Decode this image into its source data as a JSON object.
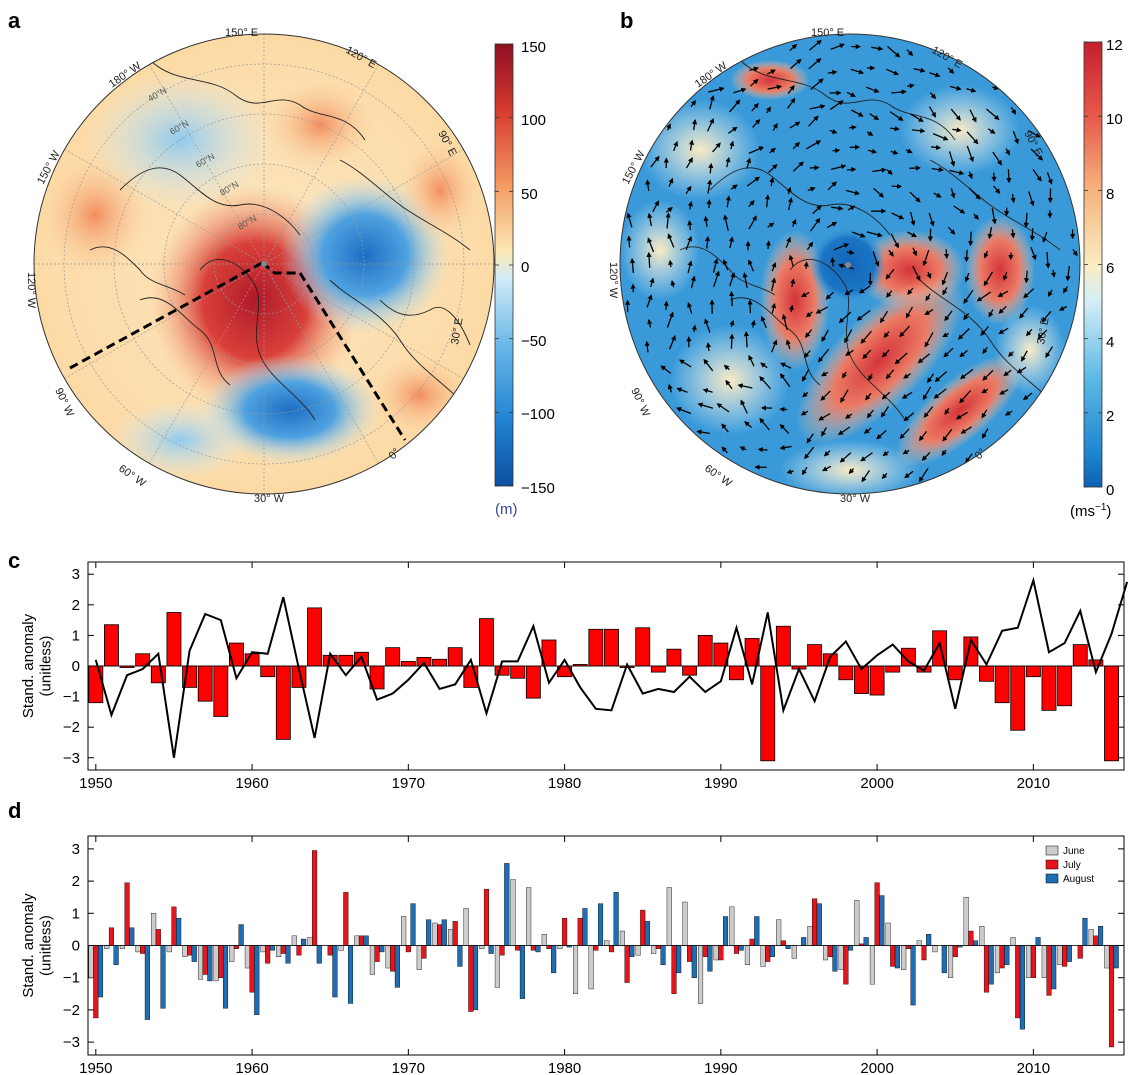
{
  "panels": {
    "a": {
      "letter": "a",
      "lon_labels": [
        "150° E",
        "120° E",
        "90° E",
        "30° E",
        "0°",
        "30° W",
        "60° W",
        "90° W",
        "120° W",
        "150° W",
        "180° W"
      ],
      "lat_labels": [
        "40°N",
        "60°N",
        "60°N",
        "80°N",
        "80°N"
      ],
      "colorbar": {
        "ticks": [
          "150",
          "100",
          "50",
          "0",
          "−50",
          "−100",
          "−150"
        ],
        "unit": "(m)",
        "unit_color": "#3a4a9a",
        "min": -150,
        "max": 150
      }
    },
    "b": {
      "letter": "b",
      "lon_labels": [
        "150° E",
        "120° E",
        "90° E",
        "30° E",
        "0°",
        "30° W",
        "60° W",
        "90° W",
        "120° W",
        "150° W",
        "180° W"
      ],
      "colorbar": {
        "ticks": [
          "12",
          "10",
          "8",
          "6",
          "4",
          "2",
          "0"
        ],
        "unit": "(ms",
        "unit_sup": "−1",
        "unit_close": ")",
        "min": 0,
        "max": 12
      }
    }
  },
  "colors": {
    "red": "#ff0000",
    "black": "#000000",
    "june": "#cccccc",
    "july": "#e8141c",
    "august": "#1f6db3",
    "map_high": "#a5192b",
    "map_low": "#1c66b5"
  },
  "chart_data": [
    {
      "panel": "c",
      "type": "bar",
      "ylabel": "Stand. anomaly (unitless)",
      "ylabel_lines": [
        "Stand. anomaly",
        "(unitless)"
      ],
      "xlim": [
        1949.5,
        2015.8
      ],
      "ylim": [
        -3.4,
        3.4
      ],
      "xticks": [
        "1950",
        "1960",
        "1970",
        "1980",
        "1990",
        "2000",
        "2010"
      ],
      "yticks": [
        "−3",
        "−2",
        "−1",
        "0",
        "1",
        "2",
        "3"
      ],
      "x_start": 1950,
      "bar_values": [
        -1.2,
        1.35,
        -0.05,
        0.4,
        -0.55,
        1.75,
        -0.7,
        -1.15,
        -1.65,
        0.75,
        0.4,
        -0.35,
        -2.4,
        -0.7,
        1.9,
        0.35,
        0.35,
        0.45,
        -0.75,
        0.6,
        0.15,
        0.28,
        0.22,
        0.6,
        -0.7,
        1.55,
        -0.3,
        -0.4,
        -1.05,
        0.85,
        -0.35,
        0.05,
        1.2,
        1.2,
        -0.05,
        1.25,
        -0.2,
        0.55,
        -0.3,
        1.0,
        0.75,
        -0.45,
        0.9,
        -3.1,
        1.3,
        -0.1,
        0.7,
        0.4,
        -0.45,
        -0.9,
        -0.95,
        -0.2,
        0.58,
        -0.2,
        1.15,
        -0.45,
        0.95,
        -0.5,
        -1.2,
        -2.1,
        -0.35,
        -1.45,
        -1.3,
        0.7,
        0.2,
        -3.1
      ],
      "line_values": [
        0.2,
        -1.6,
        -0.3,
        -0.1,
        0.4,
        -3.0,
        0.5,
        1.7,
        1.5,
        -0.4,
        0.45,
        0.4,
        2.25,
        -0.1,
        -2.35,
        0.4,
        -0.3,
        0.3,
        -1.1,
        -0.9,
        -0.45,
        0.1,
        -0.75,
        -0.6,
        0.2,
        -1.55,
        0.15,
        0.15,
        1.3,
        -0.55,
        0.2,
        -0.7,
        -1.4,
        -1.45,
        0.05,
        -0.9,
        -0.75,
        -0.85,
        -0.35,
        -0.85,
        -0.5,
        1.25,
        -0.6,
        1.75,
        -1.45,
        -0.1,
        -1.15,
        0.3,
        0.8,
        -0.1,
        0.35,
        0.7,
        0.15,
        -0.15,
        0.75,
        -1.4,
        0.85,
        0.05,
        1.15,
        1.25,
        2.8,
        0.45,
        0.75,
        1.8,
        -0.2,
        1.05,
        2.75
      ]
    },
    {
      "panel": "d",
      "type": "bar",
      "ylabel": "Stand. anomaly (unitless)",
      "ylabel_lines": [
        "Stand. anomaly",
        "(unitless)"
      ],
      "xlim": [
        1949.5,
        2015.8
      ],
      "ylim": [
        -3.4,
        3.4
      ],
      "xticks": [
        "1950",
        "1960",
        "1970",
        "1980",
        "1990",
        "2000",
        "2010"
      ],
      "yticks": [
        "−3",
        "−2",
        "−1",
        "0",
        "1",
        "2",
        "3"
      ],
      "x_start": 1950,
      "legend_position": "top-right",
      "series": [
        {
          "name": "June",
          "color": "#cccccc",
          "values": [
            -1.0,
            -0.1,
            -0.1,
            -0.2,
            1.0,
            -0.2,
            -0.35,
            -1.05,
            -1.1,
            -0.5,
            -0.7,
            -0.2,
            -0.35,
            0.3,
            0.25,
            0.0,
            -0.15,
            0.3,
            -0.9,
            -0.7,
            0.9,
            -0.75,
            0.7,
            0.5,
            1.15,
            -0.1,
            -1.3,
            2.05,
            1.8,
            0.35,
            -0.1,
            -1.5,
            -1.35,
            0.15,
            0.45,
            -0.3,
            -0.25,
            1.8,
            1.35,
            -1.8,
            -0.45,
            1.2,
            -0.6,
            -0.65,
            0.8,
            -0.4,
            0.6,
            -0.45,
            -0.75,
            1.4,
            -1.2,
            0.7,
            -0.75,
            0.15,
            -0.2,
            -1.0,
            1.5,
            0.6,
            -0.85,
            0.25,
            -1.0,
            -1.0,
            -0.6,
            0.0,
            0.5,
            -0.7
          ]
        },
        {
          "name": "July",
          "color": "#e8141c",
          "values": [
            -2.25,
            0.55,
            1.95,
            -0.25,
            0.5,
            1.2,
            -0.3,
            -0.9,
            -1.0,
            -0.1,
            -1.45,
            -0.55,
            -0.25,
            -0.3,
            2.95,
            -0.3,
            1.65,
            0.3,
            -0.5,
            -0.8,
            -0.2,
            -0.4,
            0.65,
            0.75,
            -2.05,
            1.75,
            -0.3,
            -0.15,
            -0.15,
            -0.1,
            0.85,
            0.85,
            -0.15,
            -0.2,
            -1.15,
            1.1,
            -0.1,
            -1.5,
            -0.5,
            -0.35,
            -0.45,
            -0.25,
            0.2,
            -0.5,
            0.15,
            0.0,
            1.45,
            -0.35,
            -1.2,
            0.05,
            1.95,
            -0.65,
            -0.1,
            -0.45,
            0.0,
            -0.35,
            0.45,
            -1.45,
            -0.7,
            -2.25,
            -1.0,
            -1.55,
            -0.65,
            -0.4,
            0.3,
            -3.15
          ]
        },
        {
          "name": "August",
          "color": "#1f6db3",
          "values": [
            -1.6,
            -0.6,
            0.55,
            -2.3,
            -1.95,
            0.85,
            -0.5,
            -1.1,
            -1.95,
            0.65,
            -2.15,
            -0.15,
            -0.55,
            0.2,
            -0.55,
            -1.6,
            -1.8,
            0.3,
            -0.2,
            -1.3,
            1.3,
            0.8,
            0.8,
            -0.65,
            -2.0,
            -0.25,
            2.55,
            -1.65,
            -0.2,
            -0.85,
            -0.05,
            1.15,
            1.3,
            1.65,
            -0.35,
            0.75,
            -0.6,
            -0.85,
            -1.0,
            -0.8,
            0.9,
            -0.15,
            0.9,
            -0.35,
            -0.1,
            0.25,
            1.3,
            -0.8,
            -0.15,
            0.25,
            1.55,
            -0.7,
            -1.85,
            0.35,
            -0.85,
            -0.05,
            0.15,
            -1.2,
            -0.6,
            -2.6,
            0.25,
            -1.35,
            -0.5,
            0.85,
            0.6,
            -0.7
          ]
        }
      ]
    }
  ]
}
